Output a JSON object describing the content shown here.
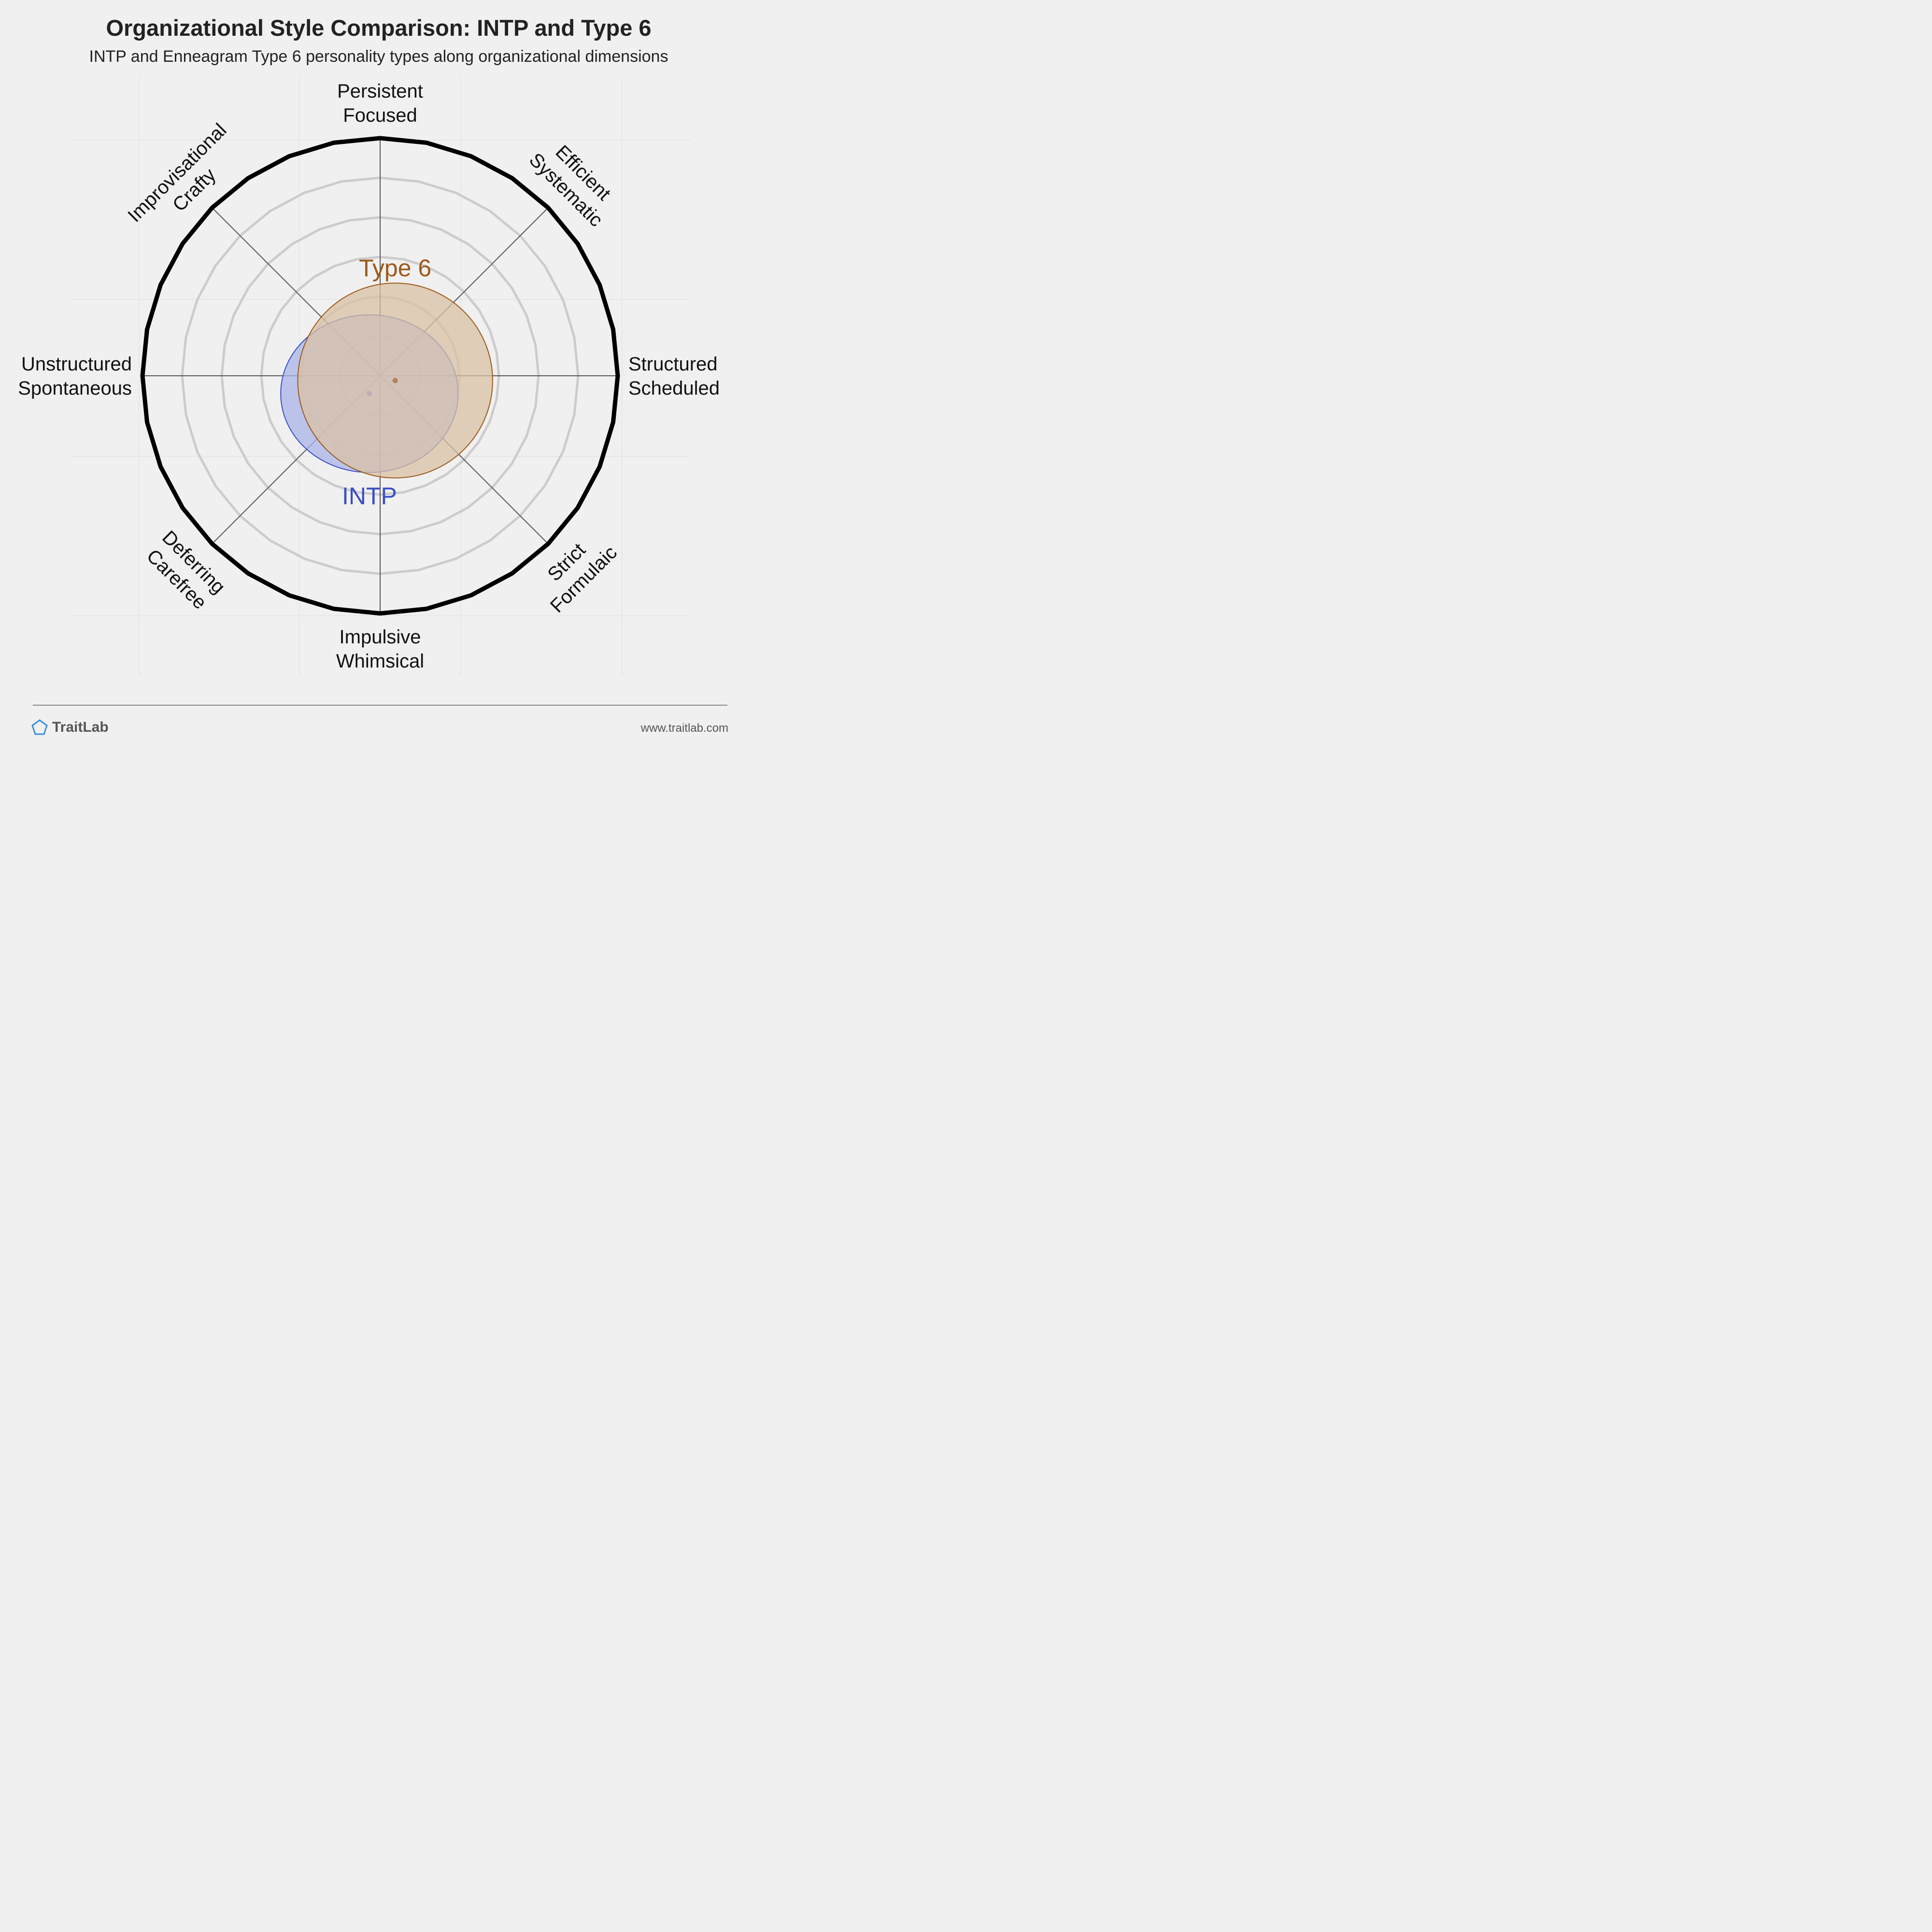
{
  "header": {
    "title": "Organizational Style Comparison: INTP and Type 6",
    "subtitle": "INTP and Enneagram Type 6 personality types along organizational dimensions"
  },
  "footer": {
    "brand": "TraitLab",
    "url": "www.traitlab.com",
    "logo_icon": "pentagon-icon"
  },
  "chart_data": {
    "type": "radar",
    "title": "Organizational Style Comparison: INTP and Type 6",
    "subtitle": "INTP and Enneagram Type 6 personality types along organizational dimensions",
    "axes": [
      {
        "name": "structured",
        "lines": [
          "Structured",
          "Scheduled"
        ]
      },
      {
        "name": "efficient",
        "lines": [
          "Efficient",
          "Systematic"
        ]
      },
      {
        "name": "persistent",
        "lines": [
          "Persistent",
          "Focused"
        ]
      },
      {
        "name": "improvisational",
        "lines": [
          "Improvisational",
          "Crafty"
        ]
      },
      {
        "name": "unstructured",
        "lines": [
          "Unstructured",
          "Spontaneous"
        ]
      },
      {
        "name": "deferring",
        "lines": [
          "Deferring",
          "Carefree"
        ]
      },
      {
        "name": "impulsive",
        "lines": [
          "Impulsive",
          "Whimsical"
        ]
      },
      {
        "name": "strict",
        "lines": [
          "Strict",
          "Formulaic"
        ]
      }
    ],
    "radial_range": [
      0,
      6
    ],
    "rings": 6,
    "series": [
      {
        "name": "INTP",
        "color": "#3a4fc4",
        "fill": "#aab4ea",
        "center": [
          -0.27,
          -0.45
        ],
        "radius_x": 2.24,
        "radius_y": 1.99
      },
      {
        "name": "Type 6",
        "color": "#9c5a1a",
        "fill": "#d9c2a5",
        "center": [
          0.38,
          -0.12
        ],
        "radius_x": 2.46,
        "radius_y": 2.46
      }
    ]
  }
}
